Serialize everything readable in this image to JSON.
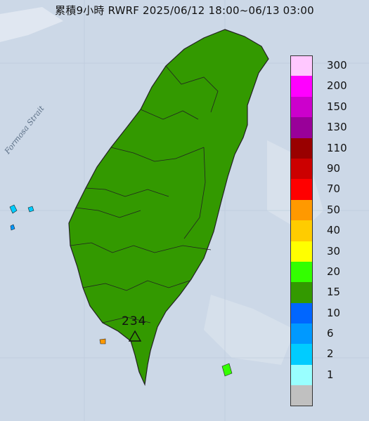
{
  "title": "累積9小時 RWRF 2025/06/12 18:00~06/13 03:00",
  "strait_label": "Formosa Strait",
  "max_value": "234",
  "legend": [
    {
      "label": "300",
      "color": "#ffc8ff"
    },
    {
      "label": "200",
      "color": "#ff00ff"
    },
    {
      "label": "150",
      "color": "#cc00cc"
    },
    {
      "label": "130",
      "color": "#990099"
    },
    {
      "label": "110",
      "color": "#990000"
    },
    {
      "label": "90",
      "color": "#cc0000"
    },
    {
      "label": "70",
      "color": "#ff0000"
    },
    {
      "label": "50",
      "color": "#ff9900"
    },
    {
      "label": "40",
      "color": "#ffcc00"
    },
    {
      "label": "30",
      "color": "#ffff00"
    },
    {
      "label": "20",
      "color": "#33ff00"
    },
    {
      "label": "15",
      "color": "#339900"
    },
    {
      "label": "10",
      "color": "#0066ff"
    },
    {
      "label": "6",
      "color": "#0099ff"
    },
    {
      "label": "2",
      "color": "#00ccff"
    },
    {
      "label": "1",
      "color": "#99ffff"
    },
    {
      "label": "",
      "color": "#c0c0c0"
    }
  ]
}
